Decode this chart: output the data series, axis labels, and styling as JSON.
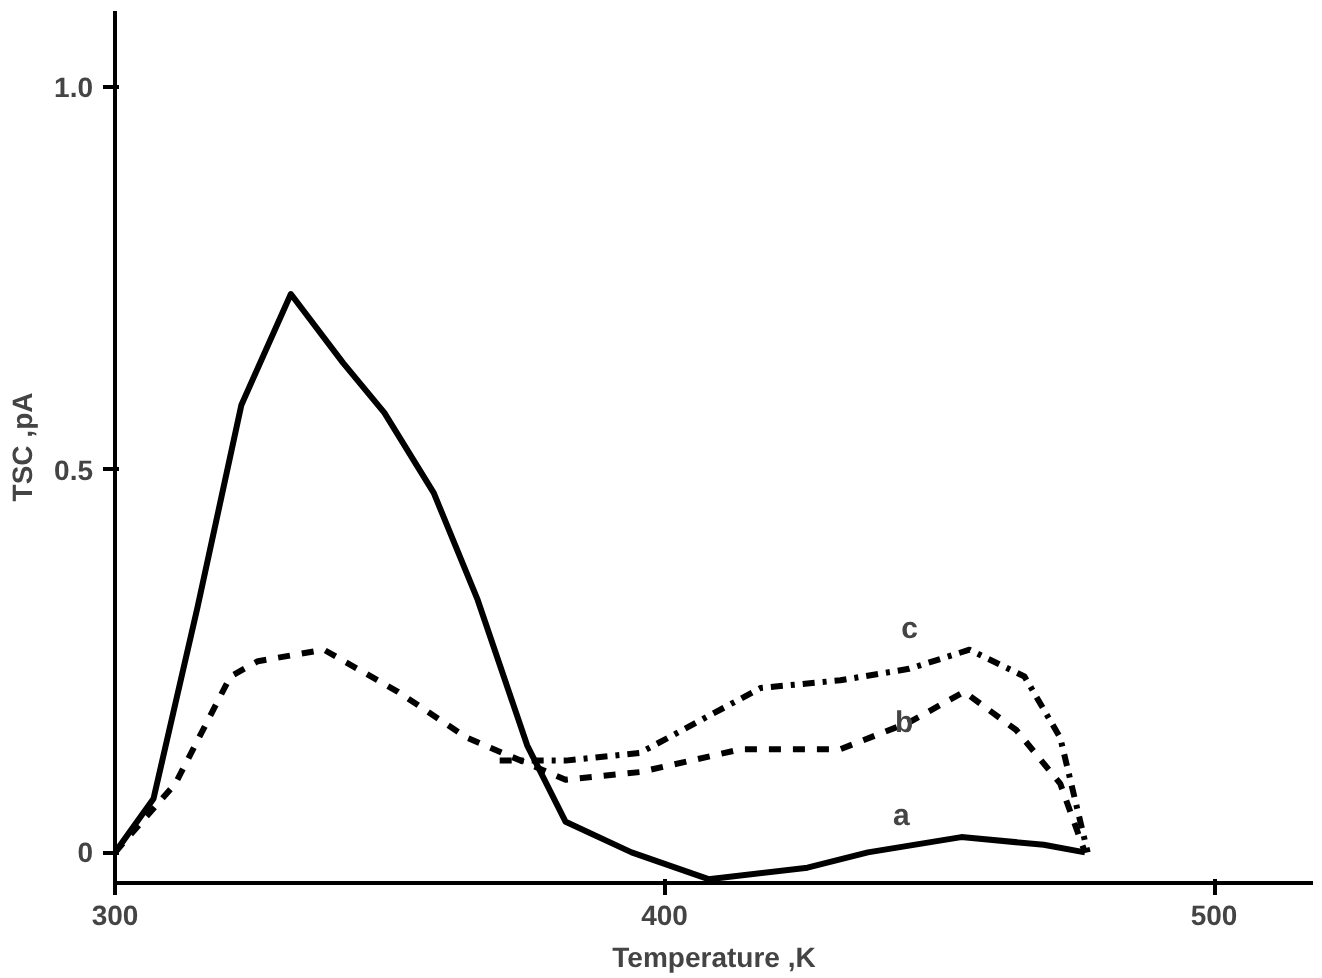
{
  "chart_data": {
    "type": "line",
    "xlabel": "Temperature ,K",
    "ylabel": "TSC ,pA",
    "xlim": [
      300,
      518
    ],
    "ylim": [
      -0.04,
      1.1
    ],
    "xticks": [
      300,
      400,
      500
    ],
    "yticks": [
      0,
      0.5,
      {
        "value": 1.0,
        "label": "1.0"
      }
    ],
    "grid": false,
    "marker": "none",
    "series": [
      {
        "name": "a",
        "color": "#000000",
        "line_style": "solid",
        "x": [
          300,
          307,
          315,
          323,
          332,
          341.5,
          349,
          358,
          366,
          375,
          382,
          394,
          408,
          426,
          437,
          454,
          469,
          476.5
        ],
        "values": [
          0,
          0.07,
          0.32,
          0.585,
          0.73,
          0.64,
          0.575,
          0.47,
          0.33,
          0.14,
          0.04,
          0,
          -0.035,
          -0.02,
          0,
          0.02,
          0.01,
          0
        ]
      },
      {
        "name": "b",
        "color": "#000000",
        "line_style": "dashed",
        "x": [
          300,
          311,
          321,
          326,
          338,
          351.5,
          364,
          382,
          395.5,
          414,
          432,
          444.5,
          454.5,
          464,
          472,
          476.5
        ],
        "values": [
          0,
          0.09,
          0.23,
          0.25,
          0.265,
          0.21,
          0.15,
          0.095,
          0.105,
          0.135,
          0.135,
          0.17,
          0.21,
          0.16,
          0.09,
          0
        ]
      },
      {
        "name": "c",
        "color": "#000000",
        "line_style": "dashdot",
        "x": [
          370,
          382,
          395.5,
          417.5,
          432,
          444.5,
          455.5,
          465.5,
          472,
          477
        ],
        "values": [
          0.12,
          0.12,
          0.13,
          0.215,
          0.225,
          0.24,
          0.265,
          0.23,
          0.15,
          0
        ]
      }
    ]
  }
}
